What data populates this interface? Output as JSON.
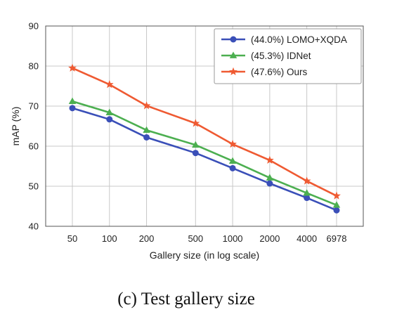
{
  "chart_data": {
    "type": "line",
    "xscale": "log",
    "x": [
      50,
      100,
      200,
      500,
      1000,
      2000,
      4000,
      6978
    ],
    "xticklabels": [
      "50",
      "100",
      "200",
      "500",
      "1000",
      "2000",
      "4000",
      "6978"
    ],
    "xlabel": "Gallery size (in log scale)",
    "ylabel": "mAP (%)",
    "ylim": [
      40,
      90
    ],
    "yticks": [
      40,
      50,
      60,
      70,
      80,
      90
    ],
    "grid": true,
    "legend": "top-right",
    "series": [
      {
        "name": "(44.0%) LOMO+XQDA",
        "color": "#3a4fb8",
        "marker": "circle",
        "values": [
          69.5,
          66.7,
          62.2,
          58.3,
          54.5,
          50.7,
          47.1,
          44.0
        ]
      },
      {
        "name": "(45.3%) IDNet",
        "color": "#4caf50",
        "marker": "triangle",
        "values": [
          71.2,
          68.4,
          64.0,
          60.3,
          56.3,
          52.1,
          48.3,
          45.3
        ]
      },
      {
        "name": "(47.6%) Ours",
        "color": "#ef5a32",
        "marker": "star",
        "values": [
          79.5,
          75.4,
          70.1,
          65.7,
          60.5,
          56.5,
          51.3,
          47.6
        ]
      }
    ]
  },
  "caption": "(c) Test gallery size"
}
